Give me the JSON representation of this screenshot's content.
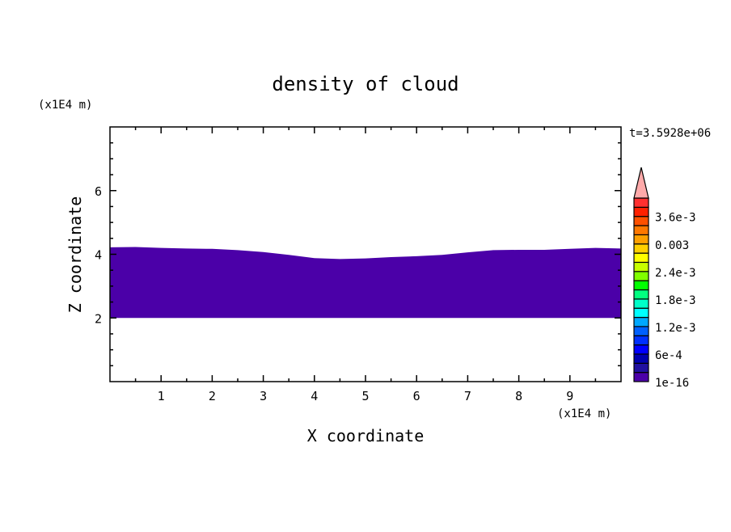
{
  "chart_data": {
    "type": "heatmap",
    "title": "density of cloud",
    "xlabel": "X coordinate",
    "ylabel": "Z coordinate",
    "x_unit": "(x1E4 m)",
    "y_unit": "(x1E4 m)",
    "time_label": "t=3.5928e+06",
    "xlim": [
      0,
      10
    ],
    "ylim": [
      0,
      8
    ],
    "x_ticks": [
      "1",
      "2",
      "3",
      "4",
      "5",
      "6",
      "7",
      "8",
      "9"
    ],
    "y_ticks": [
      "2",
      "4",
      "6"
    ],
    "cloud_region": {
      "fill_color": "#4b00a8",
      "level": "1e-16",
      "bottom": 2.0,
      "top_profile": {
        "x": [
          0,
          0.5,
          1,
          1.5,
          2,
          2.5,
          3,
          3.5,
          4,
          4.5,
          5,
          5.5,
          6,
          6.5,
          7,
          7.5,
          8,
          8.5,
          9,
          9.5,
          10
        ],
        "z": [
          4.22,
          4.23,
          4.2,
          4.18,
          4.17,
          4.13,
          4.07,
          3.98,
          3.88,
          3.85,
          3.87,
          3.91,
          3.94,
          3.98,
          4.06,
          4.13,
          4.14,
          4.14,
          4.17,
          4.2,
          4.18
        ]
      }
    },
    "colorbar": {
      "colors": [
        "#4b00a8",
        "#2010a0",
        "#0000b0",
        "#0000ff",
        "#0030ff",
        "#0060ff",
        "#00a8ff",
        "#00ffff",
        "#00ffc8",
        "#00ff80",
        "#00ff00",
        "#80ff00",
        "#c8ff00",
        "#ffff00",
        "#ffd000",
        "#ffa000",
        "#ff7800",
        "#ff5000",
        "#ff2000",
        "#ff3030"
      ],
      "over_color": "#ffaaaa",
      "labels": [
        "1e-16",
        "6e-4",
        "1.2e-3",
        "1.8e-3",
        "2.4e-3",
        "0.003",
        "3.6e-3"
      ]
    }
  }
}
